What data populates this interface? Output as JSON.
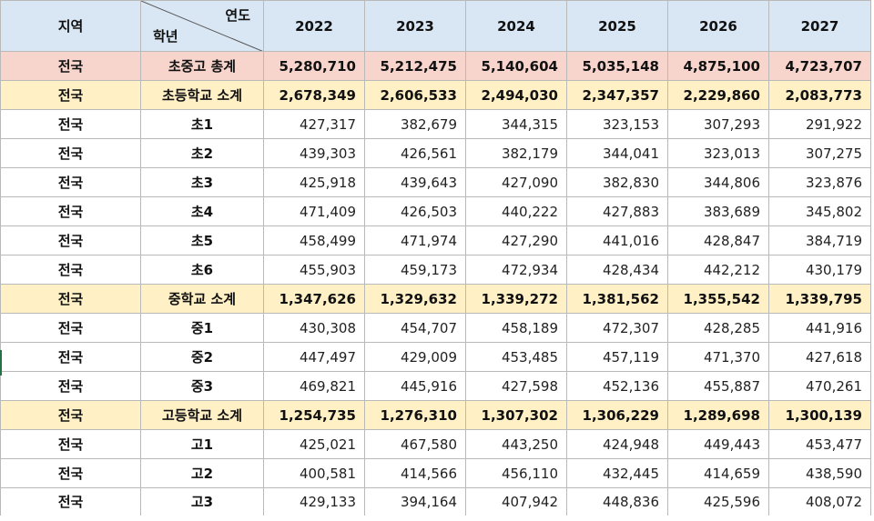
{
  "table": {
    "header": {
      "region": "지역",
      "year_label": "연도",
      "grade_label": "학년",
      "years": [
        "2022",
        "2023",
        "2024",
        "2025",
        "2026",
        "2027"
      ]
    },
    "rows": [
      {
        "region": "전국",
        "grade": "초중고 총계",
        "values": [
          "5,280,710",
          "5,212,475",
          "5,140,604",
          "5,035,148",
          "4,875,100",
          "4,723,707"
        ]
      },
      {
        "region": "전국",
        "grade": "초등학교 소계",
        "values": [
          "2,678,349",
          "2,606,533",
          "2,494,030",
          "2,347,357",
          "2,229,860",
          "2,083,773"
        ]
      },
      {
        "region": "전국",
        "grade": "초1",
        "values": [
          "427,317",
          "382,679",
          "344,315",
          "323,153",
          "307,293",
          "291,922"
        ]
      },
      {
        "region": "전국",
        "grade": "초2",
        "values": [
          "439,303",
          "426,561",
          "382,179",
          "344,041",
          "323,013",
          "307,275"
        ]
      },
      {
        "region": "전국",
        "grade": "초3",
        "values": [
          "425,918",
          "439,643",
          "427,090",
          "382,830",
          "344,806",
          "323,876"
        ]
      },
      {
        "region": "전국",
        "grade": "초4",
        "values": [
          "471,409",
          "426,503",
          "440,222",
          "427,883",
          "383,689",
          "345,802"
        ]
      },
      {
        "region": "전국",
        "grade": "초5",
        "values": [
          "458,499",
          "471,974",
          "427,290",
          "441,016",
          "428,847",
          "384,719"
        ]
      },
      {
        "region": "전국",
        "grade": "초6",
        "values": [
          "455,903",
          "459,173",
          "472,934",
          "428,434",
          "442,212",
          "430,179"
        ]
      },
      {
        "region": "전국",
        "grade": "중학교 소계",
        "values": [
          "1,347,626",
          "1,329,632",
          "1,339,272",
          "1,381,562",
          "1,355,542",
          "1,339,795"
        ]
      },
      {
        "region": "전국",
        "grade": "중1",
        "values": [
          "430,308",
          "454,707",
          "458,189",
          "472,307",
          "428,285",
          "441,916"
        ]
      },
      {
        "region": "전국",
        "grade": "중2",
        "values": [
          "447,497",
          "429,009",
          "453,485",
          "457,119",
          "471,370",
          "427,618"
        ]
      },
      {
        "region": "전국",
        "grade": "중3",
        "values": [
          "469,821",
          "445,916",
          "427,598",
          "452,136",
          "455,887",
          "470,261"
        ]
      },
      {
        "region": "전국",
        "grade": "고등학교 소계",
        "values": [
          "1,254,735",
          "1,276,310",
          "1,307,302",
          "1,306,229",
          "1,289,698",
          "1,300,139"
        ]
      },
      {
        "region": "전국",
        "grade": "고1",
        "values": [
          "425,021",
          "467,580",
          "443,250",
          "424,948",
          "449,443",
          "453,477"
        ]
      },
      {
        "region": "전국",
        "grade": "고2",
        "values": [
          "400,581",
          "414,566",
          "456,110",
          "432,445",
          "414,659",
          "438,590"
        ]
      },
      {
        "region": "전국",
        "grade": "고3",
        "values": [
          "429,133",
          "394,164",
          "407,942",
          "448,836",
          "425,596",
          "408,072"
        ]
      }
    ]
  },
  "row_styles": [
    "total",
    "subtotal",
    "plain",
    "plain",
    "plain",
    "plain",
    "plain",
    "plain",
    "subtotal",
    "plain",
    "plain",
    "plain",
    "subtotal",
    "plain",
    "plain",
    "plain"
  ],
  "colors": {
    "header_fill": "#d9e6f4",
    "total_fill": "#f8d5cc",
    "subtotal_fill": "#fff0c6",
    "grid_line": "#b9b9b9",
    "selection_mark": "#217346"
  }
}
